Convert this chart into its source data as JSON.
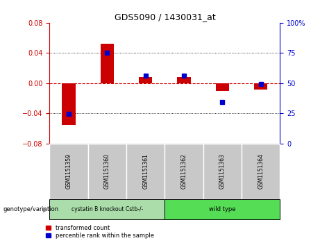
{
  "title": "GDS5090 / 1430031_at",
  "samples": [
    "GSM1151359",
    "GSM1151360",
    "GSM1151361",
    "GSM1151362",
    "GSM1151363",
    "GSM1151364"
  ],
  "red_values": [
    -0.055,
    0.052,
    0.008,
    0.008,
    -0.01,
    -0.008
  ],
  "blue_values": [
    -0.041,
    0.04,
    0.01,
    0.01,
    -0.025,
    -0.001
  ],
  "ylim": [
    -0.08,
    0.08
  ],
  "yticks_left": [
    -0.08,
    -0.04,
    0.0,
    0.04,
    0.08
  ],
  "yticks_right_labels": [
    "0",
    "25",
    "50",
    "75",
    "100%"
  ],
  "red_color": "#cc0000",
  "blue_color": "#0000cc",
  "zero_line_color": "#cc0000",
  "sample_bg_color": "#c8c8c8",
  "group1_color": "#aaddaa",
  "group2_color": "#55dd55",
  "group1_label": "cystatin B knockout Cstb-/-",
  "group2_label": "wild type",
  "genotype_label": "genotype/variation",
  "legend_red": "transformed count",
  "legend_blue": "percentile rank within the sample"
}
